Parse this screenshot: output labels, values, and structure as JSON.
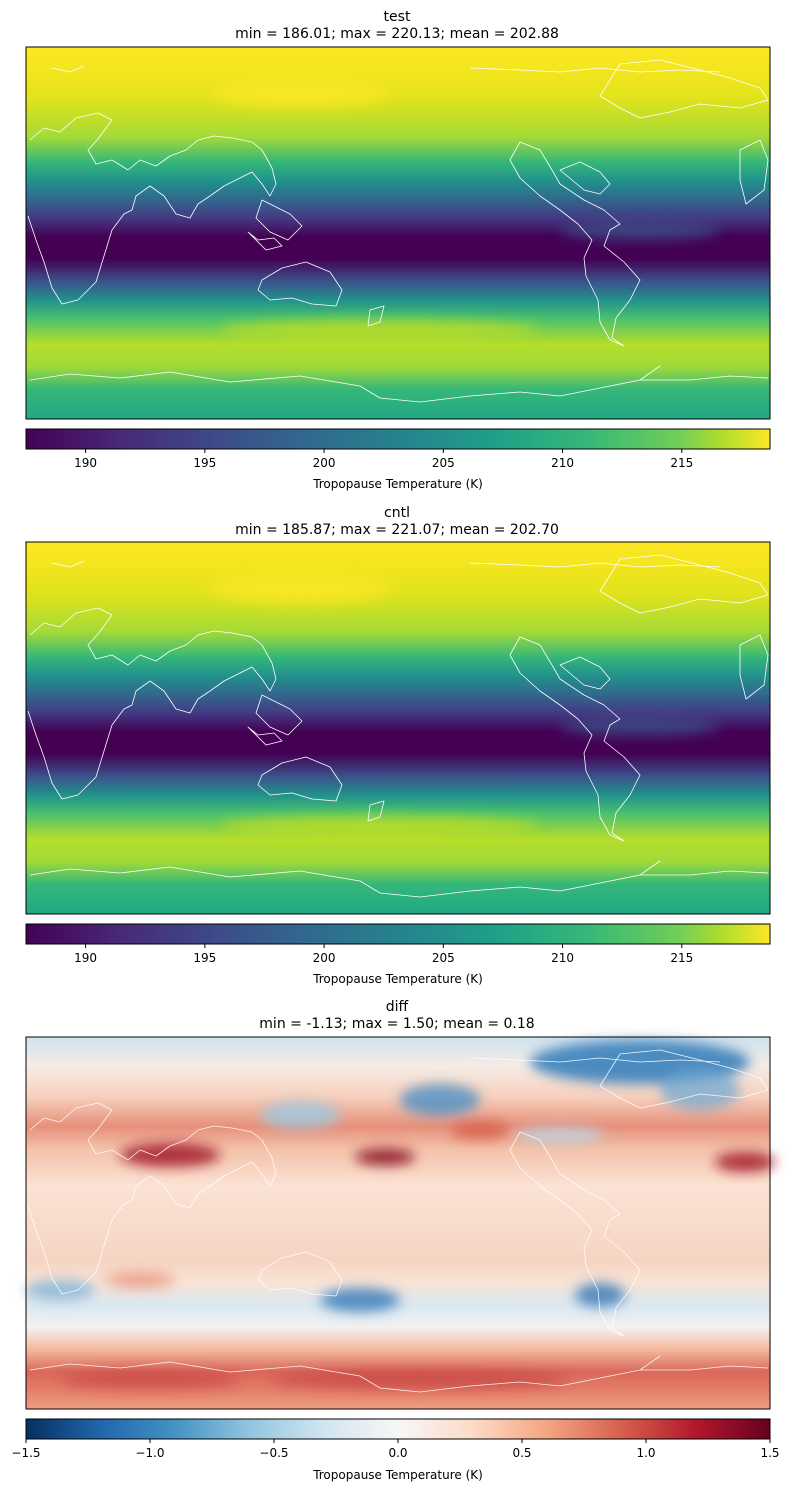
{
  "panels": [
    {
      "title": "test",
      "subtitle": "min = 186.01; max = 220.13; mean = 202.88",
      "colorbar": {
        "colormap": "viridis",
        "label": "Tropopause Temperature (K)",
        "range": [
          187.5,
          218.7
        ],
        "ticks": [
          "190",
          "195",
          "200",
          "205",
          "210",
          "215"
        ],
        "tick_values": [
          190,
          195,
          200,
          205,
          210,
          215
        ]
      }
    },
    {
      "title": "cntl",
      "subtitle": "min = 185.87; max = 221.07; mean = 202.70",
      "colorbar": {
        "colormap": "viridis",
        "label": "Tropopause Temperature (K)",
        "range": [
          187.5,
          218.7
        ],
        "ticks": [
          "190",
          "195",
          "200",
          "205",
          "210",
          "215"
        ],
        "tick_values": [
          190,
          195,
          200,
          205,
          210,
          215
        ]
      }
    },
    {
      "title": "diff",
      "subtitle": "min = -1.13; max = 1.50; mean = 0.18",
      "colorbar": {
        "colormap": "RdBu_r",
        "label": "Tropopause Temperature (K)",
        "range": [
          -1.5,
          1.5
        ],
        "ticks": [
          "−1.5",
          "−1.0",
          "−0.5",
          "0.0",
          "0.5",
          "1.0",
          "1.5"
        ],
        "tick_values": [
          -1.5,
          -1.0,
          -0.5,
          0.0,
          0.5,
          1.0,
          1.5
        ]
      }
    }
  ],
  "chart_data": [
    {
      "type": "heatmap",
      "title": "test",
      "subtitle": "min = 186.01; max = 220.13; mean = 202.88",
      "colorbar_label": "Tropopause Temperature (K)",
      "colormap": "viridis",
      "vrange": [
        187.5,
        218.7
      ],
      "stats": {
        "min": 186.01,
        "max": 220.13,
        "mean": 202.88
      },
      "zonal_profile_lat": [
        90,
        75,
        60,
        45,
        35,
        25,
        15,
        5,
        -5,
        -15,
        -25,
        -35,
        -45,
        -60,
        -75,
        -90
      ],
      "zonal_profile_value": [
        218,
        217,
        216,
        214,
        208,
        198,
        190,
        187,
        188,
        194,
        205,
        211,
        212,
        210,
        206,
        206
      ]
    },
    {
      "type": "heatmap",
      "title": "cntl",
      "subtitle": "min = 185.87; max = 221.07; mean = 202.70",
      "colorbar_label": "Tropopause Temperature (K)",
      "colormap": "viridis",
      "vrange": [
        187.5,
        218.7
      ],
      "stats": {
        "min": 185.87,
        "max": 221.07,
        "mean": 202.7
      },
      "zonal_profile_lat": [
        90,
        75,
        60,
        45,
        35,
        25,
        15,
        5,
        -5,
        -15,
        -25,
        -35,
        -45,
        -60,
        -75,
        -90
      ],
      "zonal_profile_value": [
        218,
        217,
        216,
        214,
        208,
        198,
        190,
        187,
        188,
        194,
        205,
        211,
        212,
        210,
        206,
        206
      ]
    },
    {
      "type": "heatmap",
      "title": "diff",
      "subtitle": "min = -1.13; max = 1.50; mean = 0.18",
      "colorbar_label": "Tropopause Temperature (K)",
      "colormap": "RdBu_r",
      "vrange": [
        -1.5,
        1.5
      ],
      "stats": {
        "min": -1.13,
        "max": 1.5,
        "mean": 0.18
      },
      "zonal_profile_lat": [
        90,
        75,
        60,
        45,
        35,
        25,
        15,
        5,
        -5,
        -15,
        -25,
        -35,
        -45,
        -60,
        -75,
        -90
      ],
      "zonal_profile_value": [
        -0.4,
        -0.3,
        0.2,
        0.4,
        0.9,
        0.3,
        0.3,
        0.2,
        0.3,
        0.4,
        0.3,
        -0.2,
        0.2,
        0.9,
        1.0,
        0.6
      ]
    }
  ]
}
